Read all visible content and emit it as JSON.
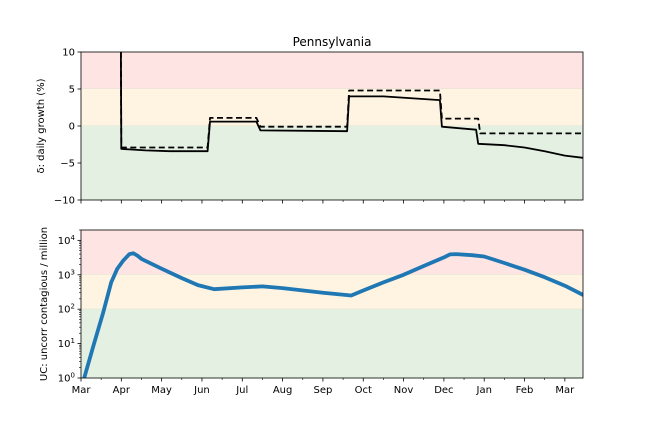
{
  "chart_data": [
    {
      "type": "line",
      "title": "Pennsylvania",
      "ylabel": "δ: daily growth (%)",
      "ylim": [
        -10,
        10
      ],
      "yticks": [
        -10,
        -5,
        0,
        5,
        10
      ],
      "bands": [
        {
          "from": 5,
          "to": 10,
          "color": "#ffe4e4"
        },
        {
          "from": 0,
          "to": 5,
          "color": "#fff4e1"
        },
        {
          "from": -10,
          "to": 0,
          "color": "#e4f0e2"
        }
      ],
      "series": [
        {
          "style": "solid",
          "color": "#000000",
          "points": [
            [
              0.99,
              10
            ],
            [
              1.0,
              -3.1
            ],
            [
              1.6,
              -3.3
            ],
            [
              2.2,
              -3.4
            ],
            [
              3.14,
              -3.4
            ],
            [
              3.2,
              0.6
            ],
            [
              3.8,
              0.6
            ],
            [
              4.35,
              0.6
            ],
            [
              4.45,
              -0.6
            ],
            [
              6.6,
              -0.7
            ],
            [
              6.65,
              4.0
            ],
            [
              7.5,
              4.0
            ],
            [
              8.9,
              3.5
            ],
            [
              8.95,
              -0.1
            ],
            [
              9.8,
              -0.5
            ],
            [
              9.85,
              -2.4
            ],
            [
              10.5,
              -2.6
            ],
            [
              11.0,
              -2.9
            ],
            [
              11.5,
              -3.4
            ],
            [
              12.0,
              -4.0
            ],
            [
              12.45,
              -4.3
            ]
          ]
        },
        {
          "style": "dashed",
          "color": "#000000",
          "points": [
            [
              0.99,
              10
            ],
            [
              1.0,
              -2.9
            ],
            [
              3.14,
              -2.9
            ],
            [
              3.2,
              1.1
            ],
            [
              4.35,
              1.1
            ],
            [
              4.45,
              -0.1
            ],
            [
              6.6,
              -0.1
            ],
            [
              6.65,
              4.8
            ],
            [
              8.9,
              4.8
            ],
            [
              8.95,
              1.0
            ],
            [
              9.85,
              1.0
            ],
            [
              9.9,
              -1.0
            ],
            [
              12.45,
              -1.0
            ]
          ]
        }
      ]
    },
    {
      "type": "line",
      "ylabel": "UC: uncorr contagious / million",
      "ylim": [
        1,
        20000
      ],
      "yscale": "log",
      "yticks": [
        {
          "value": 1,
          "base": "10",
          "exp": "0"
        },
        {
          "value": 10,
          "base": "10",
          "exp": "1"
        },
        {
          "value": 100,
          "base": "10",
          "exp": "2"
        },
        {
          "value": 1000,
          "base": "10",
          "exp": "3"
        },
        {
          "value": 10000,
          "base": "10",
          "exp": "4"
        }
      ],
      "bands": [
        {
          "from": 1000,
          "to": 20000,
          "color": "#ffe4e4"
        },
        {
          "from": 100,
          "to": 1000,
          "color": "#fff4e1"
        },
        {
          "from": 1,
          "to": 100,
          "color": "#e4f0e2"
        }
      ],
      "series": [
        {
          "style": "solid",
          "color": "#1f77b4",
          "points": [
            [
              0.08,
              1
            ],
            [
              0.3,
              8
            ],
            [
              0.55,
              80
            ],
            [
              0.75,
              600
            ],
            [
              0.9,
              1500
            ],
            [
              1.05,
              2600
            ],
            [
              1.2,
              4000
            ],
            [
              1.3,
              4200
            ],
            [
              1.4,
              3600
            ],
            [
              1.5,
              2900
            ],
            [
              2.0,
              1500
            ],
            [
              2.5,
              800
            ],
            [
              2.9,
              500
            ],
            [
              3.3,
              380
            ],
            [
              4.0,
              430
            ],
            [
              4.5,
              460
            ],
            [
              5.0,
              410
            ],
            [
              6.0,
              300
            ],
            [
              6.7,
              250
            ],
            [
              7.0,
              350
            ],
            [
              7.5,
              600
            ],
            [
              8.0,
              1000
            ],
            [
              8.5,
              1800
            ],
            [
              9.0,
              3200
            ],
            [
              9.15,
              3900
            ],
            [
              9.3,
              4000
            ],
            [
              9.7,
              3700
            ],
            [
              10.0,
              3400
            ],
            [
              10.5,
              2200
            ],
            [
              11.0,
              1400
            ],
            [
              11.5,
              850
            ],
            [
              12.0,
              480
            ],
            [
              12.45,
              260
            ]
          ]
        }
      ]
    }
  ],
  "x_axis": {
    "xlim": [
      0,
      12.45
    ],
    "months": [
      {
        "label": "Mar",
        "x": 0
      },
      {
        "label": "Apr",
        "x": 1
      },
      {
        "label": "May",
        "x": 2
      },
      {
        "label": "Jun",
        "x": 3
      },
      {
        "label": "Jul",
        "x": 4
      },
      {
        "label": "Aug",
        "x": 5
      },
      {
        "label": "Sep",
        "x": 6
      },
      {
        "label": "Oct",
        "x": 7
      },
      {
        "label": "Nov",
        "x": 8
      },
      {
        "label": "Dec",
        "x": 9
      },
      {
        "label": "Jan",
        "x": 10
      },
      {
        "label": "Feb",
        "x": 11
      },
      {
        "label": "Mar",
        "x": 12
      }
    ]
  }
}
